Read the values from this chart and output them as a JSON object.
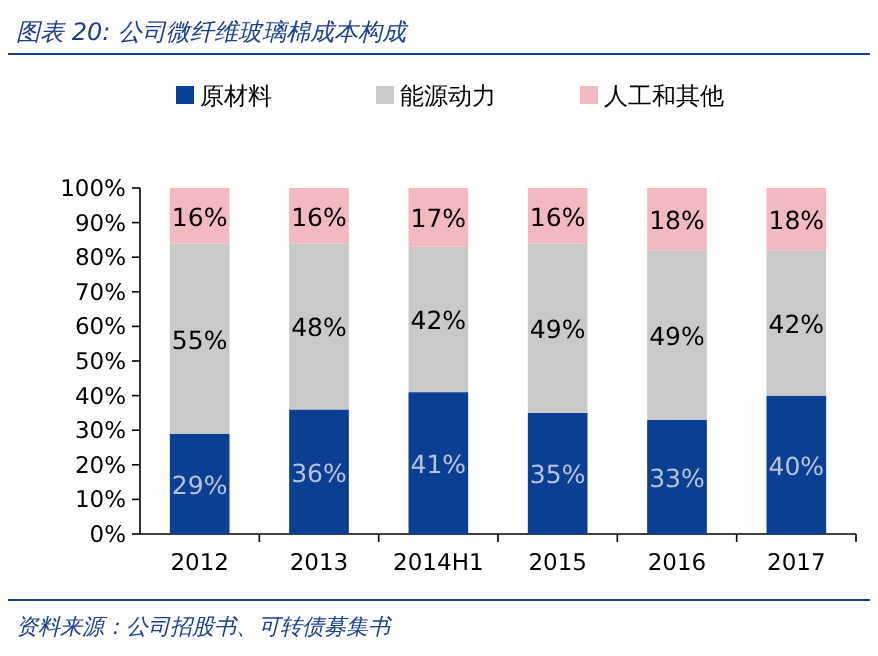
{
  "chart_data": {
    "type": "bar",
    "stacked": true,
    "title": "图表 20:  公司微纤维玻璃棉成本构成",
    "categories": [
      "2012",
      "2013",
      "2014H1",
      "2015",
      "2016",
      "2017"
    ],
    "series": [
      {
        "name": "原材料",
        "color": "#0b3f94",
        "values": [
          29,
          36,
          41,
          35,
          33,
          40
        ],
        "value_labels": [
          "29%",
          "36%",
          "41%",
          "35%",
          "33%",
          "40%"
        ]
      },
      {
        "name": "能源动力",
        "color": "#c9c9c9",
        "values": [
          55,
          48,
          42,
          49,
          49,
          42
        ],
        "value_labels": [
          "55%",
          "48%",
          "42%",
          "49%",
          "49%",
          "42%"
        ]
      },
      {
        "name": "人工和其他",
        "color": "#f2b9be",
        "values": [
          16,
          16,
          17,
          16,
          18,
          18
        ],
        "value_labels": [
          "16%",
          "16%",
          "17%",
          "16%",
          "18%",
          "18%"
        ]
      }
    ],
    "ylim": [
      0,
      100
    ],
    "yticks": [
      {
        "value": 0,
        "label": "0%"
      },
      {
        "value": 10,
        "label": "10%"
      },
      {
        "value": 20,
        "label": "20%"
      },
      {
        "value": 30,
        "label": "30%"
      },
      {
        "value": 40,
        "label": "40%"
      },
      {
        "value": 50,
        "label": "50%"
      },
      {
        "value": 60,
        "label": "60%"
      },
      {
        "value": 70,
        "label": "70%"
      },
      {
        "value": 80,
        "label": "80%"
      },
      {
        "value": 90,
        "label": "90%"
      },
      {
        "value": 100,
        "label": "100%"
      }
    ],
    "legend": "top",
    "annotations": [
      "资料来源：公司招股书、可转债募集书"
    ]
  }
}
